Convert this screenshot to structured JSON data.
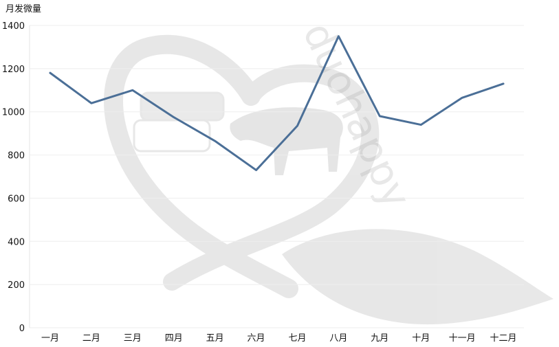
{
  "chart_data": {
    "type": "line",
    "title": "",
    "xlabel": "",
    "ylabel": "月发微量",
    "categories": [
      "一月",
      "二月",
      "三月",
      "四月",
      "五月",
      "六月",
      "七月",
      "八月",
      "九月",
      "十月",
      "十一月",
      "十二月"
    ],
    "series": [
      {
        "values": [
          1180,
          1040,
          1100,
          975,
          865,
          730,
          935,
          1350,
          980,
          940,
          1065,
          1130
        ],
        "color": "#4b6f97"
      }
    ],
    "ylim": [
      0,
      1400
    ],
    "yticks": [
      0,
      200,
      400,
      600,
      800,
      1000,
      1200,
      1400
    ],
    "grid": true,
    "legend": "none",
    "watermark_text": "duohappy"
  }
}
